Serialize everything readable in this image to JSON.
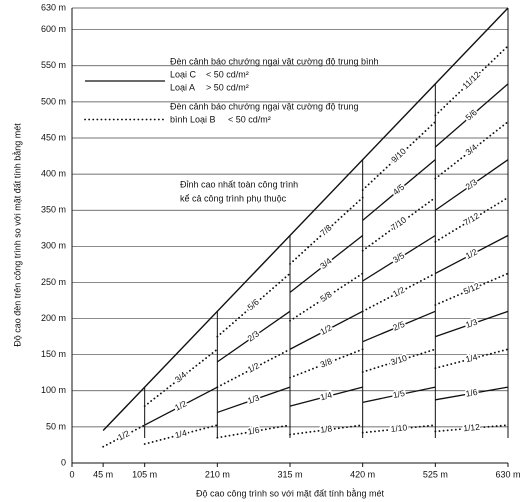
{
  "chart_data": {
    "type": "line",
    "x_label": "Độ cao công trình so với mặt đất tính bằng mét",
    "y_label": "Độ cao đèn trên công trình so với mặt đất tính bằng mét",
    "xlim": [
      0,
      630
    ],
    "ylim": [
      0,
      630
    ],
    "xticks": [
      0,
      {
        "value": 45,
        "label": "45 m"
      },
      {
        "value": 105,
        "label": "105 m"
      },
      {
        "value": 210,
        "label": "210 m"
      },
      {
        "value": 315,
        "label": "315 m"
      },
      {
        "value": 420,
        "label": "420 m"
      },
      {
        "value": 525,
        "label": "525 m"
      },
      {
        "value": 630,
        "label": "630 m"
      }
    ],
    "yticks": [
      0,
      {
        "value": 50,
        "label": "50 m"
      },
      {
        "value": 100,
        "label": "100 m"
      },
      {
        "value": 150,
        "label": "150 m"
      },
      {
        "value": 200,
        "label": "200 m"
      },
      {
        "value": 250,
        "label": "250 m"
      },
      {
        "value": 300,
        "label": "300 m"
      },
      {
        "value": 350,
        "label": "350 m"
      },
      {
        "value": 400,
        "label": "400 m"
      },
      {
        "value": 450,
        "label": "450 m"
      },
      {
        "value": 500,
        "label": "500 m"
      },
      {
        "value": 550,
        "label": "550 m"
      },
      {
        "value": 600,
        "label": "600 m"
      },
      {
        "value": 630,
        "label": "630 m"
      }
    ],
    "grid": true,
    "color": "#111111",
    "envelope": {
      "x": [
        45,
        630
      ],
      "values": [
        45,
        630
      ]
    },
    "legend": [
      {
        "style": "solid",
        "heading": [
          "Đèn cảnh báo chướng ngại vật cường độ trung bình"
        ],
        "entries": [
          {
            "label": "Loại C",
            "limit": "< 50 cd/m²"
          },
          {
            "label": "Loại A",
            "limit": "> 50 cd/m²"
          }
        ]
      },
      {
        "style": "dotted",
        "heading": [
          "Đèn cảnh báo chướng ngại vật cường độ trung",
          "bình Loại B"
        ],
        "entries": [
          {
            "label": "",
            "limit": "< 50 cd/m²"
          }
        ]
      }
    ],
    "annotation": [
      "Đỉnh cao nhất toàn công trình",
      "kể cả công trình phụ thuộc"
    ],
    "series": [
      {
        "name": "1/2",
        "style": "dotted",
        "x": [
          45,
          105
        ],
        "values": [
          22.5,
          52.5
        ]
      },
      {
        "name": "1/4",
        "style": "dotted",
        "x": [
          105,
          210
        ],
        "values": [
          26.25,
          52.5
        ]
      },
      {
        "name": "1/2",
        "style": "solid",
        "x": [
          105,
          210
        ],
        "values": [
          52.5,
          105
        ]
      },
      {
        "name": "3/4",
        "style": "dotted",
        "x": [
          105,
          210
        ],
        "values": [
          78.75,
          157.5
        ]
      },
      {
        "name": "1/6",
        "style": "dotted",
        "x": [
          210,
          315
        ],
        "values": [
          35,
          52.5
        ]
      },
      {
        "name": "1/3",
        "style": "solid",
        "x": [
          210,
          315
        ],
        "values": [
          70,
          105
        ]
      },
      {
        "name": "1/2",
        "style": "dotted",
        "x": [
          210,
          315
        ],
        "values": [
          105,
          157.5
        ]
      },
      {
        "name": "2/3",
        "style": "solid",
        "x": [
          210,
          315
        ],
        "values": [
          140,
          210
        ]
      },
      {
        "name": "5/6",
        "style": "dotted",
        "x": [
          210,
          315
        ],
        "values": [
          175,
          262.5
        ]
      },
      {
        "name": "1/8",
        "style": "dotted",
        "x": [
          315,
          420
        ],
        "values": [
          39.375,
          52.5
        ]
      },
      {
        "name": "1/4",
        "style": "solid",
        "x": [
          315,
          420
        ],
        "values": [
          78.75,
          105
        ]
      },
      {
        "name": "3/8",
        "style": "dotted",
        "x": [
          315,
          420
        ],
        "values": [
          118.125,
          157.5
        ]
      },
      {
        "name": "1/2",
        "style": "solid",
        "x": [
          315,
          420
        ],
        "values": [
          157.5,
          210
        ]
      },
      {
        "name": "5/8",
        "style": "dotted",
        "x": [
          315,
          420
        ],
        "values": [
          196.875,
          262.5
        ]
      },
      {
        "name": "3/4",
        "style": "solid",
        "x": [
          315,
          420
        ],
        "values": [
          236.25,
          315
        ]
      },
      {
        "name": "7/8",
        "style": "dotted",
        "x": [
          315,
          420
        ],
        "values": [
          275.625,
          367.5
        ]
      },
      {
        "name": "1/10",
        "style": "dotted",
        "x": [
          420,
          525
        ],
        "values": [
          42,
          52.5
        ]
      },
      {
        "name": "1/5",
        "style": "solid",
        "x": [
          420,
          525
        ],
        "values": [
          84,
          105
        ]
      },
      {
        "name": "3/10",
        "style": "dotted",
        "x": [
          420,
          525
        ],
        "values": [
          126,
          157.5
        ]
      },
      {
        "name": "2/5",
        "style": "solid",
        "x": [
          420,
          525
        ],
        "values": [
          168,
          210
        ]
      },
      {
        "name": "1/2",
        "style": "dotted",
        "x": [
          420,
          525
        ],
        "values": [
          210,
          262.5
        ]
      },
      {
        "name": "3/5",
        "style": "solid",
        "x": [
          420,
          525
        ],
        "values": [
          252,
          315
        ]
      },
      {
        "name": "7/10",
        "style": "dotted",
        "x": [
          420,
          525
        ],
        "values": [
          294,
          367.5
        ]
      },
      {
        "name": "4/5",
        "style": "solid",
        "x": [
          420,
          525
        ],
        "values": [
          336,
          420
        ]
      },
      {
        "name": "9/10",
        "style": "dotted",
        "x": [
          420,
          525
        ],
        "values": [
          378,
          472.5
        ]
      },
      {
        "name": "1/12",
        "style": "dotted",
        "x": [
          525,
          630
        ],
        "values": [
          43.75,
          52.5
        ]
      },
      {
        "name": "1/6",
        "style": "solid",
        "x": [
          525,
          630
        ],
        "values": [
          87.5,
          105
        ]
      },
      {
        "name": "1/4",
        "style": "dotted",
        "x": [
          525,
          630
        ],
        "values": [
          131.25,
          157.5
        ]
      },
      {
        "name": "1/3",
        "style": "solid",
        "x": [
          525,
          630
        ],
        "values": [
          175,
          210
        ]
      },
      {
        "name": "5/12",
        "style": "dotted",
        "x": [
          525,
          630
        ],
        "values": [
          218.75,
          262.5
        ]
      },
      {
        "name": "1/2",
        "style": "solid",
        "x": [
          525,
          630
        ],
        "values": [
          262.5,
          315
        ]
      },
      {
        "name": "7/12",
        "style": "dotted",
        "x": [
          525,
          630
        ],
        "values": [
          306.25,
          367.5
        ]
      },
      {
        "name": "2/3",
        "style": "solid",
        "x": [
          525,
          630
        ],
        "values": [
          350,
          420
        ]
      },
      {
        "name": "3/4",
        "style": "dotted",
        "x": [
          525,
          630
        ],
        "values": [
          393.75,
          472.5
        ]
      },
      {
        "name": "5/6",
        "style": "solid",
        "x": [
          525,
          630
        ],
        "values": [
          437.5,
          525
        ]
      },
      {
        "name": "11/12",
        "style": "dotted",
        "x": [
          525,
          630
        ],
        "values": [
          481.25,
          577.5
        ]
      }
    ]
  }
}
